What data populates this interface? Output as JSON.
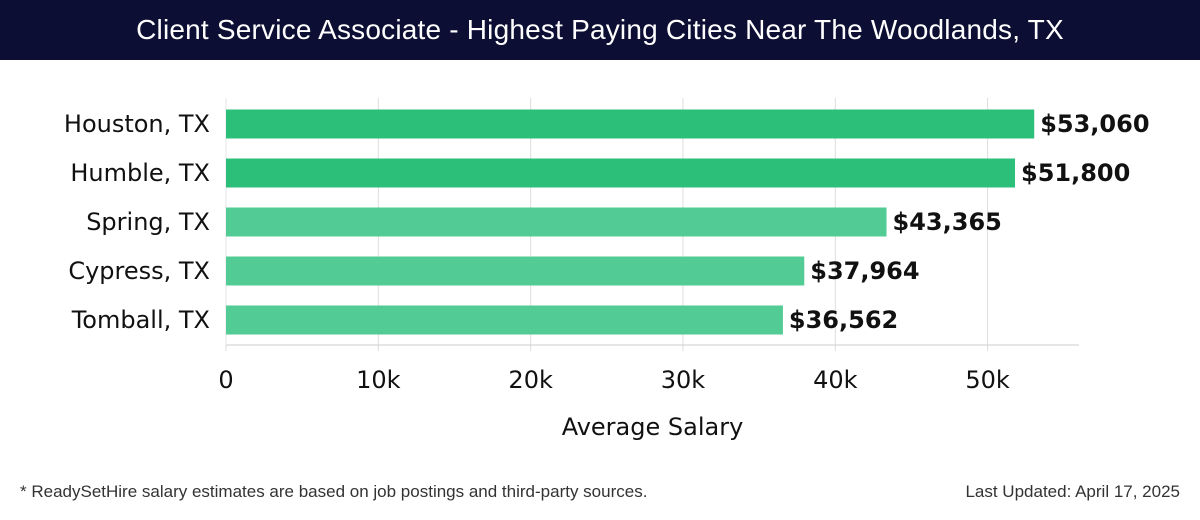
{
  "title": "Client Service Associate - Highest Paying Cities Near The Woodlands, TX",
  "footer": {
    "note": "* ReadySetHire salary estimates are based on job postings and third-party sources.",
    "updated": "Last Updated: April 17, 2025"
  },
  "chart_data": {
    "type": "bar",
    "orientation": "horizontal",
    "categories": [
      "Houston, TX",
      "Humble, TX",
      "Spring, TX",
      "Cypress, TX",
      "Tomball, TX"
    ],
    "values": [
      53060,
      51800,
      43365,
      37964,
      36562
    ],
    "value_labels": [
      "$53,060",
      "$51,800",
      "$43,365",
      "$37,964",
      "$36,562"
    ],
    "xlabel": "Average Salary",
    "ylabel": "",
    "xlim": [
      0,
      56000
    ],
    "xticks": [
      0,
      10000,
      20000,
      30000,
      40000,
      50000
    ],
    "xtick_labels": [
      "0",
      "10k",
      "20k",
      "30k",
      "40k",
      "50k"
    ],
    "grid": true,
    "colors": {
      "bar_strong": "#2bbf7a",
      "bar_light": "#52cc94",
      "grid": "#dddddd",
      "axis": "#cccccc",
      "header_bg": "#0c0f33"
    }
  }
}
